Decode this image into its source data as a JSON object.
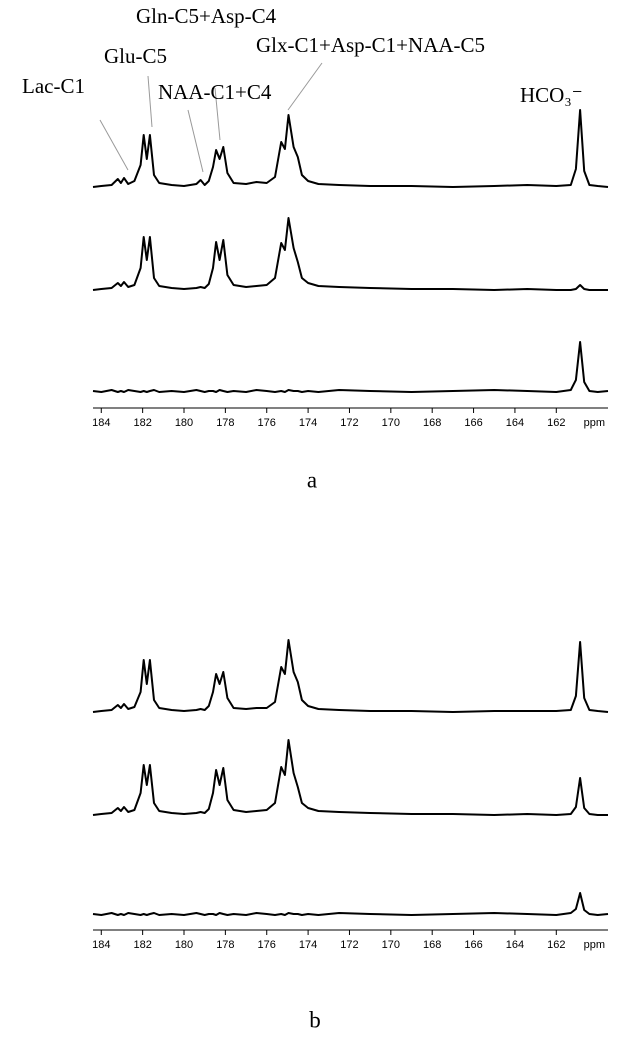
{
  "chart_data": [
    {
      "type": "line",
      "caption": "a",
      "x_label": "ppm",
      "annotations": [
        "Lac-C1",
        "Glu-C5",
        "Gln-C5+Asp-C4",
        "NAA-C1+C4",
        "Glx-C1+Asp-C1+NAA-C5",
        "HCO₃⁻"
      ],
      "xlim": [
        184.4,
        159.5
      ],
      "xticks": [
        184,
        182,
        180,
        178,
        176,
        174,
        172,
        170,
        168,
        166,
        164,
        162
      ],
      "x": [
        184.4,
        184.0,
        183.5,
        183.2,
        183.05,
        182.9,
        182.7,
        182.4,
        182.1,
        181.95,
        181.8,
        181.65,
        181.45,
        181.2,
        180.6,
        180.0,
        179.4,
        179.2,
        179.0,
        178.8,
        178.6,
        178.45,
        178.28,
        178.1,
        177.9,
        177.6,
        177.0,
        176.5,
        176.0,
        175.6,
        175.3,
        175.12,
        174.95,
        174.7,
        174.5,
        174.3,
        174.0,
        173.5,
        172.5,
        171.0,
        169.0,
        167.0,
        165.0,
        163.4,
        162.0,
        161.3,
        161.05,
        160.85,
        160.65,
        160.4,
        160.0,
        159.5
      ],
      "series": [
        {
          "color": "#000000",
          "values": [
            0,
            1,
            2,
            8,
            4,
            9,
            3,
            6,
            22,
            52,
            28,
            52,
            12,
            4,
            2,
            1,
            3,
            7,
            2,
            6,
            20,
            37,
            28,
            40,
            14,
            4,
            3,
            5,
            4,
            10,
            45,
            38,
            72,
            40,
            30,
            12,
            6,
            3,
            2,
            1,
            1,
            0,
            1,
            2,
            1,
            2,
            18,
            77,
            16,
            2,
            1,
            0
          ]
        },
        {
          "color": "#000000",
          "values": [
            0,
            1,
            2,
            7,
            4,
            8,
            3,
            5,
            22,
            53,
            30,
            53,
            12,
            4,
            2,
            1,
            2,
            3,
            2,
            6,
            22,
            48,
            30,
            50,
            15,
            5,
            3,
            4,
            5,
            12,
            47,
            40,
            72,
            42,
            28,
            12,
            7,
            4,
            3,
            2,
            1,
            1,
            0,
            1,
            0,
            0,
            1,
            5,
            1,
            0,
            0,
            0
          ]
        },
        {
          "color": "#000000",
          "values": [
            1,
            0,
            2,
            0,
            1,
            0,
            2,
            1,
            0,
            1,
            0,
            1,
            2,
            0,
            1,
            0,
            2,
            1,
            0,
            1,
            1,
            0,
            2,
            1,
            0,
            1,
            0,
            2,
            1,
            0,
            1,
            0,
            2,
            1,
            1,
            0,
            1,
            0,
            2,
            1,
            0,
            1,
            2,
            1,
            0,
            2,
            12,
            50,
            10,
            1,
            0,
            1
          ]
        }
      ]
    },
    {
      "type": "line",
      "caption": "b",
      "x_label": "ppm",
      "xlim": [
        184.4,
        159.5
      ],
      "xticks": [
        184,
        182,
        180,
        178,
        176,
        174,
        172,
        170,
        168,
        166,
        164,
        162
      ],
      "x": [
        184.4,
        184.0,
        183.5,
        183.2,
        183.05,
        182.9,
        182.7,
        182.4,
        182.1,
        181.95,
        181.8,
        181.65,
        181.45,
        181.2,
        180.6,
        180.0,
        179.4,
        179.2,
        179.0,
        178.8,
        178.6,
        178.45,
        178.28,
        178.1,
        177.9,
        177.6,
        177.0,
        176.5,
        176.0,
        175.6,
        175.3,
        175.12,
        174.95,
        174.7,
        174.5,
        174.3,
        174.0,
        173.5,
        172.5,
        171.0,
        169.0,
        167.0,
        165.0,
        163.4,
        162.0,
        161.3,
        161.05,
        160.85,
        160.65,
        160.4,
        160.0,
        159.5
      ],
      "series": [
        {
          "color": "#000000",
          "values": [
            0,
            1,
            2,
            7,
            4,
            8,
            3,
            5,
            20,
            52,
            28,
            52,
            12,
            4,
            2,
            1,
            2,
            3,
            2,
            6,
            20,
            38,
            28,
            40,
            14,
            4,
            3,
            4,
            4,
            10,
            45,
            38,
            72,
            40,
            30,
            12,
            6,
            3,
            2,
            1,
            1,
            0,
            1,
            1,
            1,
            2,
            16,
            70,
            14,
            2,
            1,
            0
          ]
        },
        {
          "color": "#000000",
          "values": [
            0,
            1,
            2,
            7,
            4,
            8,
            3,
            5,
            22,
            50,
            30,
            50,
            12,
            4,
            2,
            1,
            2,
            3,
            2,
            6,
            22,
            45,
            30,
            47,
            15,
            5,
            3,
            4,
            5,
            12,
            48,
            40,
            75,
            42,
            28,
            12,
            7,
            4,
            3,
            2,
            1,
            1,
            0,
            1,
            0,
            1,
            8,
            37,
            7,
            1,
            0,
            0
          ]
        },
        {
          "color": "#000000",
          "values": [
            1,
            0,
            2,
            0,
            1,
            0,
            2,
            1,
            0,
            1,
            0,
            1,
            2,
            0,
            1,
            0,
            2,
            1,
            0,
            1,
            1,
            0,
            2,
            1,
            0,
            1,
            0,
            2,
            1,
            0,
            1,
            0,
            2,
            1,
            1,
            0,
            1,
            0,
            2,
            1,
            0,
            1,
            2,
            1,
            0,
            2,
            6,
            22,
            5,
            1,
            0,
            1
          ]
        }
      ]
    }
  ]
}
